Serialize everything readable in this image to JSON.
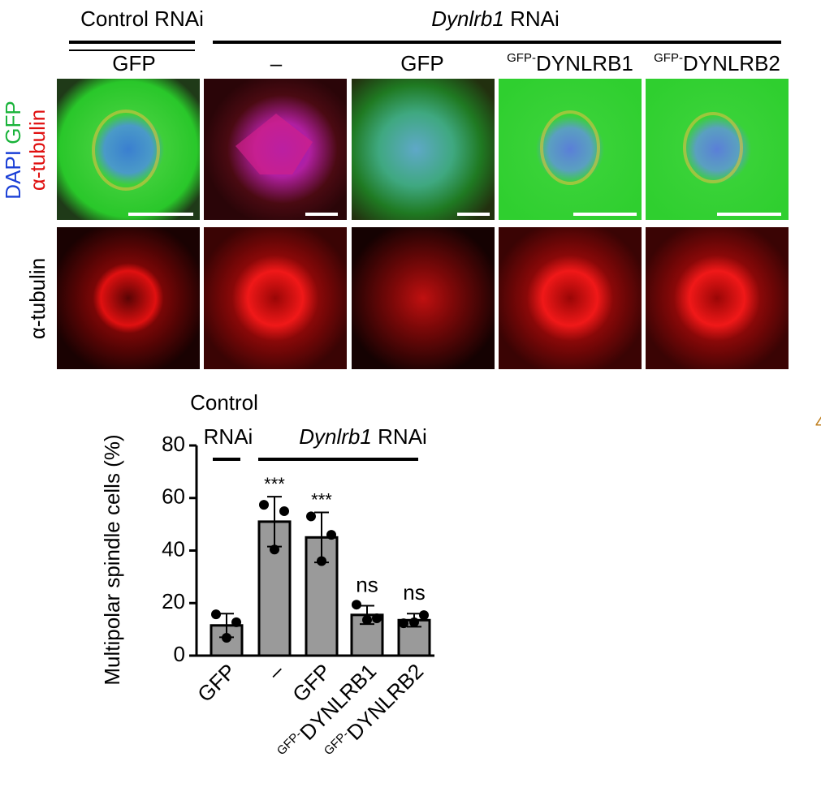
{
  "header": {
    "control": "Control RNAi",
    "dynlrb1_gene": "Dynlrb1",
    "dynlrb1_suffix": "RNAi",
    "columns": [
      {
        "label": "GFP"
      },
      {
        "label": "–"
      },
      {
        "label": "GFP"
      },
      {
        "prefix": "GFP-",
        "label": "DYNLRB1"
      },
      {
        "prefix": "GFP-",
        "label": "DYNLRB2"
      }
    ]
  },
  "rows": [
    {
      "labels": [
        {
          "text": "DAPI",
          "color": "#1a3fd6"
        },
        {
          "text": "GFP",
          "color": "#19b33a"
        },
        {
          "text": "α-tubulin",
          "color": "#e01010"
        }
      ]
    },
    {
      "labels": [
        {
          "text": "α-tubulin",
          "color": "#e01010"
        }
      ]
    }
  ],
  "edge_fragment": "4",
  "chart_data": {
    "type": "bar",
    "y_label": "Multipolar spindle cells (%)",
    "groups": [
      {
        "lines": [
          "Control",
          "RNAi"
        ]
      },
      {
        "italic": "Dynlrb1",
        "text": "RNAi"
      }
    ],
    "categories": [
      "GFP",
      "–",
      "GFP",
      "DYNLRB1",
      "DYNLRB2"
    ],
    "category_prefixes": [
      null,
      null,
      null,
      "GFP-",
      "GFP-"
    ],
    "values": [
      11.5,
      51,
      45,
      15.5,
      13.5
    ],
    "errors": [
      4.5,
      9.5,
      9.5,
      3.5,
      2.5
    ],
    "points": [
      [
        15.7,
        12.7,
        6.8
      ],
      [
        57.4,
        55,
        40.4
      ],
      [
        53,
        46,
        36
      ],
      [
        19.4,
        14.2,
        13.6
      ],
      [
        12.3,
        15.4,
        12.7
      ]
    ],
    "significance": [
      null,
      "***",
      "***",
      "ns",
      "ns"
    ],
    "color": "#9a9a9a",
    "ylim": [
      0,
      80
    ],
    "yticks": [
      0,
      20,
      40,
      60,
      80
    ],
    "grid": false
  }
}
